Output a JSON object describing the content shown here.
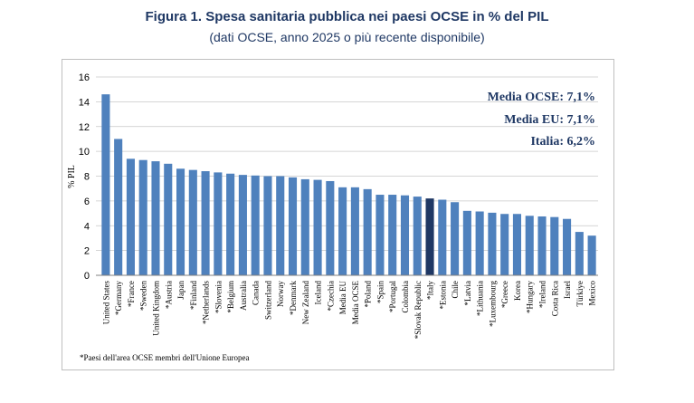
{
  "header": {
    "title": "Figura 1. Spesa sanitaria pubblica nei paesi OCSE in % del PIL",
    "subtitle": "(dati OCSE, anno 2025 o più recente disponibile)"
  },
  "footnote": "*Paesi dell'area OCSE membri dell'Unione Europea",
  "colors": {
    "bar": "#4f81bd",
    "highlight": "#1f3864",
    "annotation": "#1f3864"
  },
  "chart_data": {
    "type": "bar",
    "title": "Figura 1. Spesa sanitaria pubblica nei paesi OCSE in % del PIL",
    "subtitle": "(dati OCSE, anno 2025 o più recente disponibile)",
    "xlabel": "",
    "ylabel": "% PIL",
    "ylim": [
      0,
      16
    ],
    "yticks": [
      0,
      2,
      4,
      6,
      8,
      10,
      12,
      14,
      16
    ],
    "grid": true,
    "highlight_category": "*Italy",
    "categories": [
      "United States",
      "*Germany",
      "*France",
      "*Sweden",
      "United Kingdom",
      "*Austria",
      "Japan",
      "*Finland",
      "*Netherlands",
      "*Slovenia",
      "*Belgium",
      "Australia",
      "Canada",
      "Switzerland",
      "Norway",
      "*Denmark",
      "New Zealand",
      "Iceland",
      "*Czechia",
      "Media EU",
      "Media OCSE",
      "*Poland",
      "*Spain",
      "*Portugal",
      "Colombia",
      "*Slovak Republic",
      "*Italy",
      "*Estonia",
      "Chile",
      "*Latvia",
      "*Lithuania",
      "*Luxembourg",
      "*Greece",
      "Korea",
      "*Hungary",
      "*Ireland",
      "Costa Rica",
      "Israel",
      "Türkiye",
      "Mexico"
    ],
    "values": [
      14.6,
      11.0,
      9.4,
      9.3,
      9.2,
      9.0,
      8.6,
      8.5,
      8.4,
      8.3,
      8.2,
      8.1,
      8.05,
      8.0,
      8.0,
      7.9,
      7.75,
      7.7,
      7.6,
      7.1,
      7.1,
      6.95,
      6.5,
      6.5,
      6.45,
      6.35,
      6.2,
      6.1,
      5.9,
      5.2,
      5.15,
      5.05,
      4.95,
      4.95,
      4.8,
      4.75,
      4.7,
      4.55,
      3.5,
      3.2
    ],
    "annotations": [
      "Media OCSE: 7,1%",
      "Media EU: 7,1%",
      "Italia: 6,2%"
    ]
  }
}
